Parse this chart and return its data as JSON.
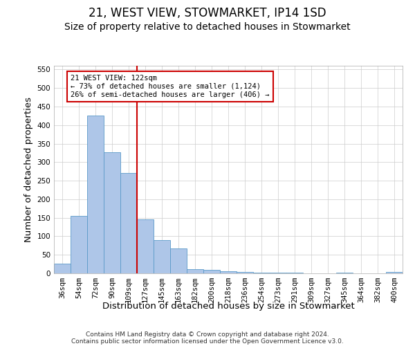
{
  "title": "21, WEST VIEW, STOWMARKET, IP14 1SD",
  "subtitle": "Size of property relative to detached houses in Stowmarket",
  "xlabel": "Distribution of detached houses by size in Stowmarket",
  "ylabel": "Number of detached properties",
  "categories": [
    "36sqm",
    "54sqm",
    "72sqm",
    "90sqm",
    "109sqm",
    "127sqm",
    "145sqm",
    "163sqm",
    "182sqm",
    "200sqm",
    "218sqm",
    "236sqm",
    "254sqm",
    "273sqm",
    "291sqm",
    "309sqm",
    "327sqm",
    "345sqm",
    "364sqm",
    "382sqm",
    "400sqm"
  ],
  "values": [
    27,
    155,
    425,
    327,
    270,
    145,
    90,
    68,
    12,
    10,
    5,
    3,
    2,
    1,
    1,
    0,
    0,
    1,
    0,
    0,
    3
  ],
  "bar_color": "#aec6e8",
  "bar_edge_color": "#5a9ac8",
  "vline_x_index": 4.5,
  "vline_color": "#cc0000",
  "annotation_text": "21 WEST VIEW: 122sqm\n← 73% of detached houses are smaller (1,124)\n26% of semi-detached houses are larger (406) →",
  "annotation_box_color": "#ffffff",
  "annotation_box_edge_color": "#cc0000",
  "ylim": [
    0,
    560
  ],
  "yticks": [
    0,
    50,
    100,
    150,
    200,
    250,
    300,
    350,
    400,
    450,
    500,
    550
  ],
  "footer_line1": "Contains HM Land Registry data © Crown copyright and database right 2024.",
  "footer_line2": "Contains public sector information licensed under the Open Government Licence v3.0.",
  "title_fontsize": 12,
  "subtitle_fontsize": 10,
  "tick_fontsize": 7.5,
  "label_fontsize": 9.5,
  "background_color": "#ffffff",
  "grid_color": "#cccccc"
}
